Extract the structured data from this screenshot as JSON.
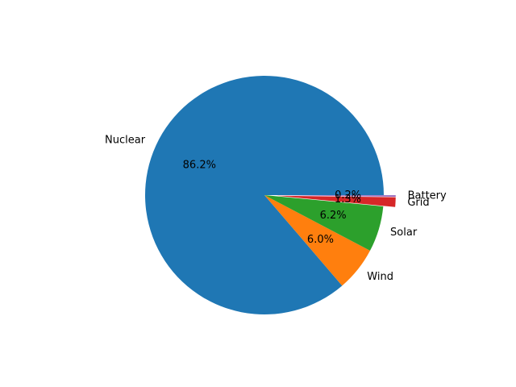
{
  "chart_data": {
    "type": "pie",
    "title": "",
    "labels": [
      "Nuclear",
      "Wind",
      "Solar",
      "Grid",
      "Battery"
    ],
    "values": [
      86.2,
      6.0,
      6.2,
      1.3,
      0.2
    ],
    "pct_labels": [
      "86.2%",
      "6.0%",
      "6.2%",
      "1.3%",
      "0.2%"
    ],
    "exploded": [
      false,
      false,
      false,
      true,
      true
    ],
    "colors": [
      "#1f77b4",
      "#ff7f0e",
      "#2ca02c",
      "#d62728",
      "#9467bd"
    ],
    "start_angle_deg": 0,
    "direction": "counterclockwise",
    "legend": "none"
  }
}
